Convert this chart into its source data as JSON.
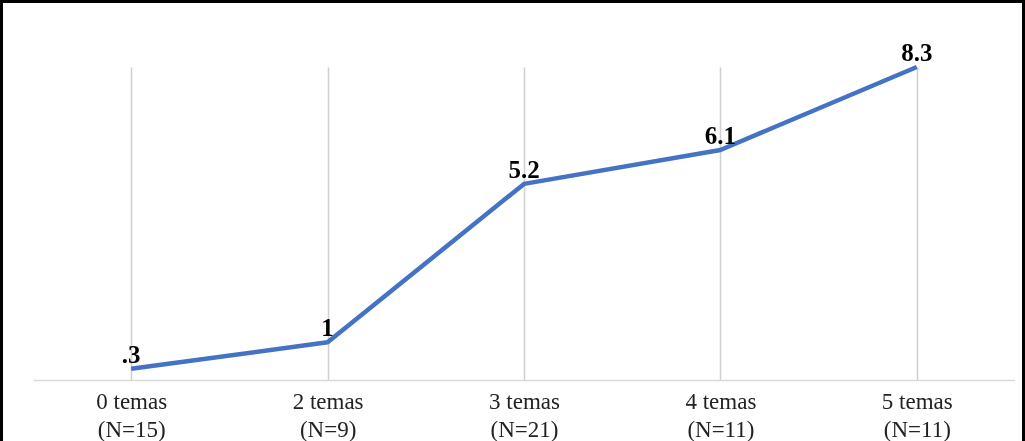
{
  "chart_data": {
    "type": "line",
    "categories": [
      "0 temas\n(N=15)",
      "2 temas\n(N=9)",
      "3 temas\n(N=21)",
      "4 temas\n(N=11)",
      "5 temas\n(N=11)"
    ],
    "series": [
      {
        "color": "#4472c4",
        "values": [
          0.3,
          1,
          5.2,
          6.1,
          8.3
        ],
        "value_labels": [
          ".3",
          "1",
          "5.2",
          "6.1",
          "8.3"
        ]
      }
    ],
    "grid": "x",
    "marker": "none",
    "line_style": "solid"
  }
}
